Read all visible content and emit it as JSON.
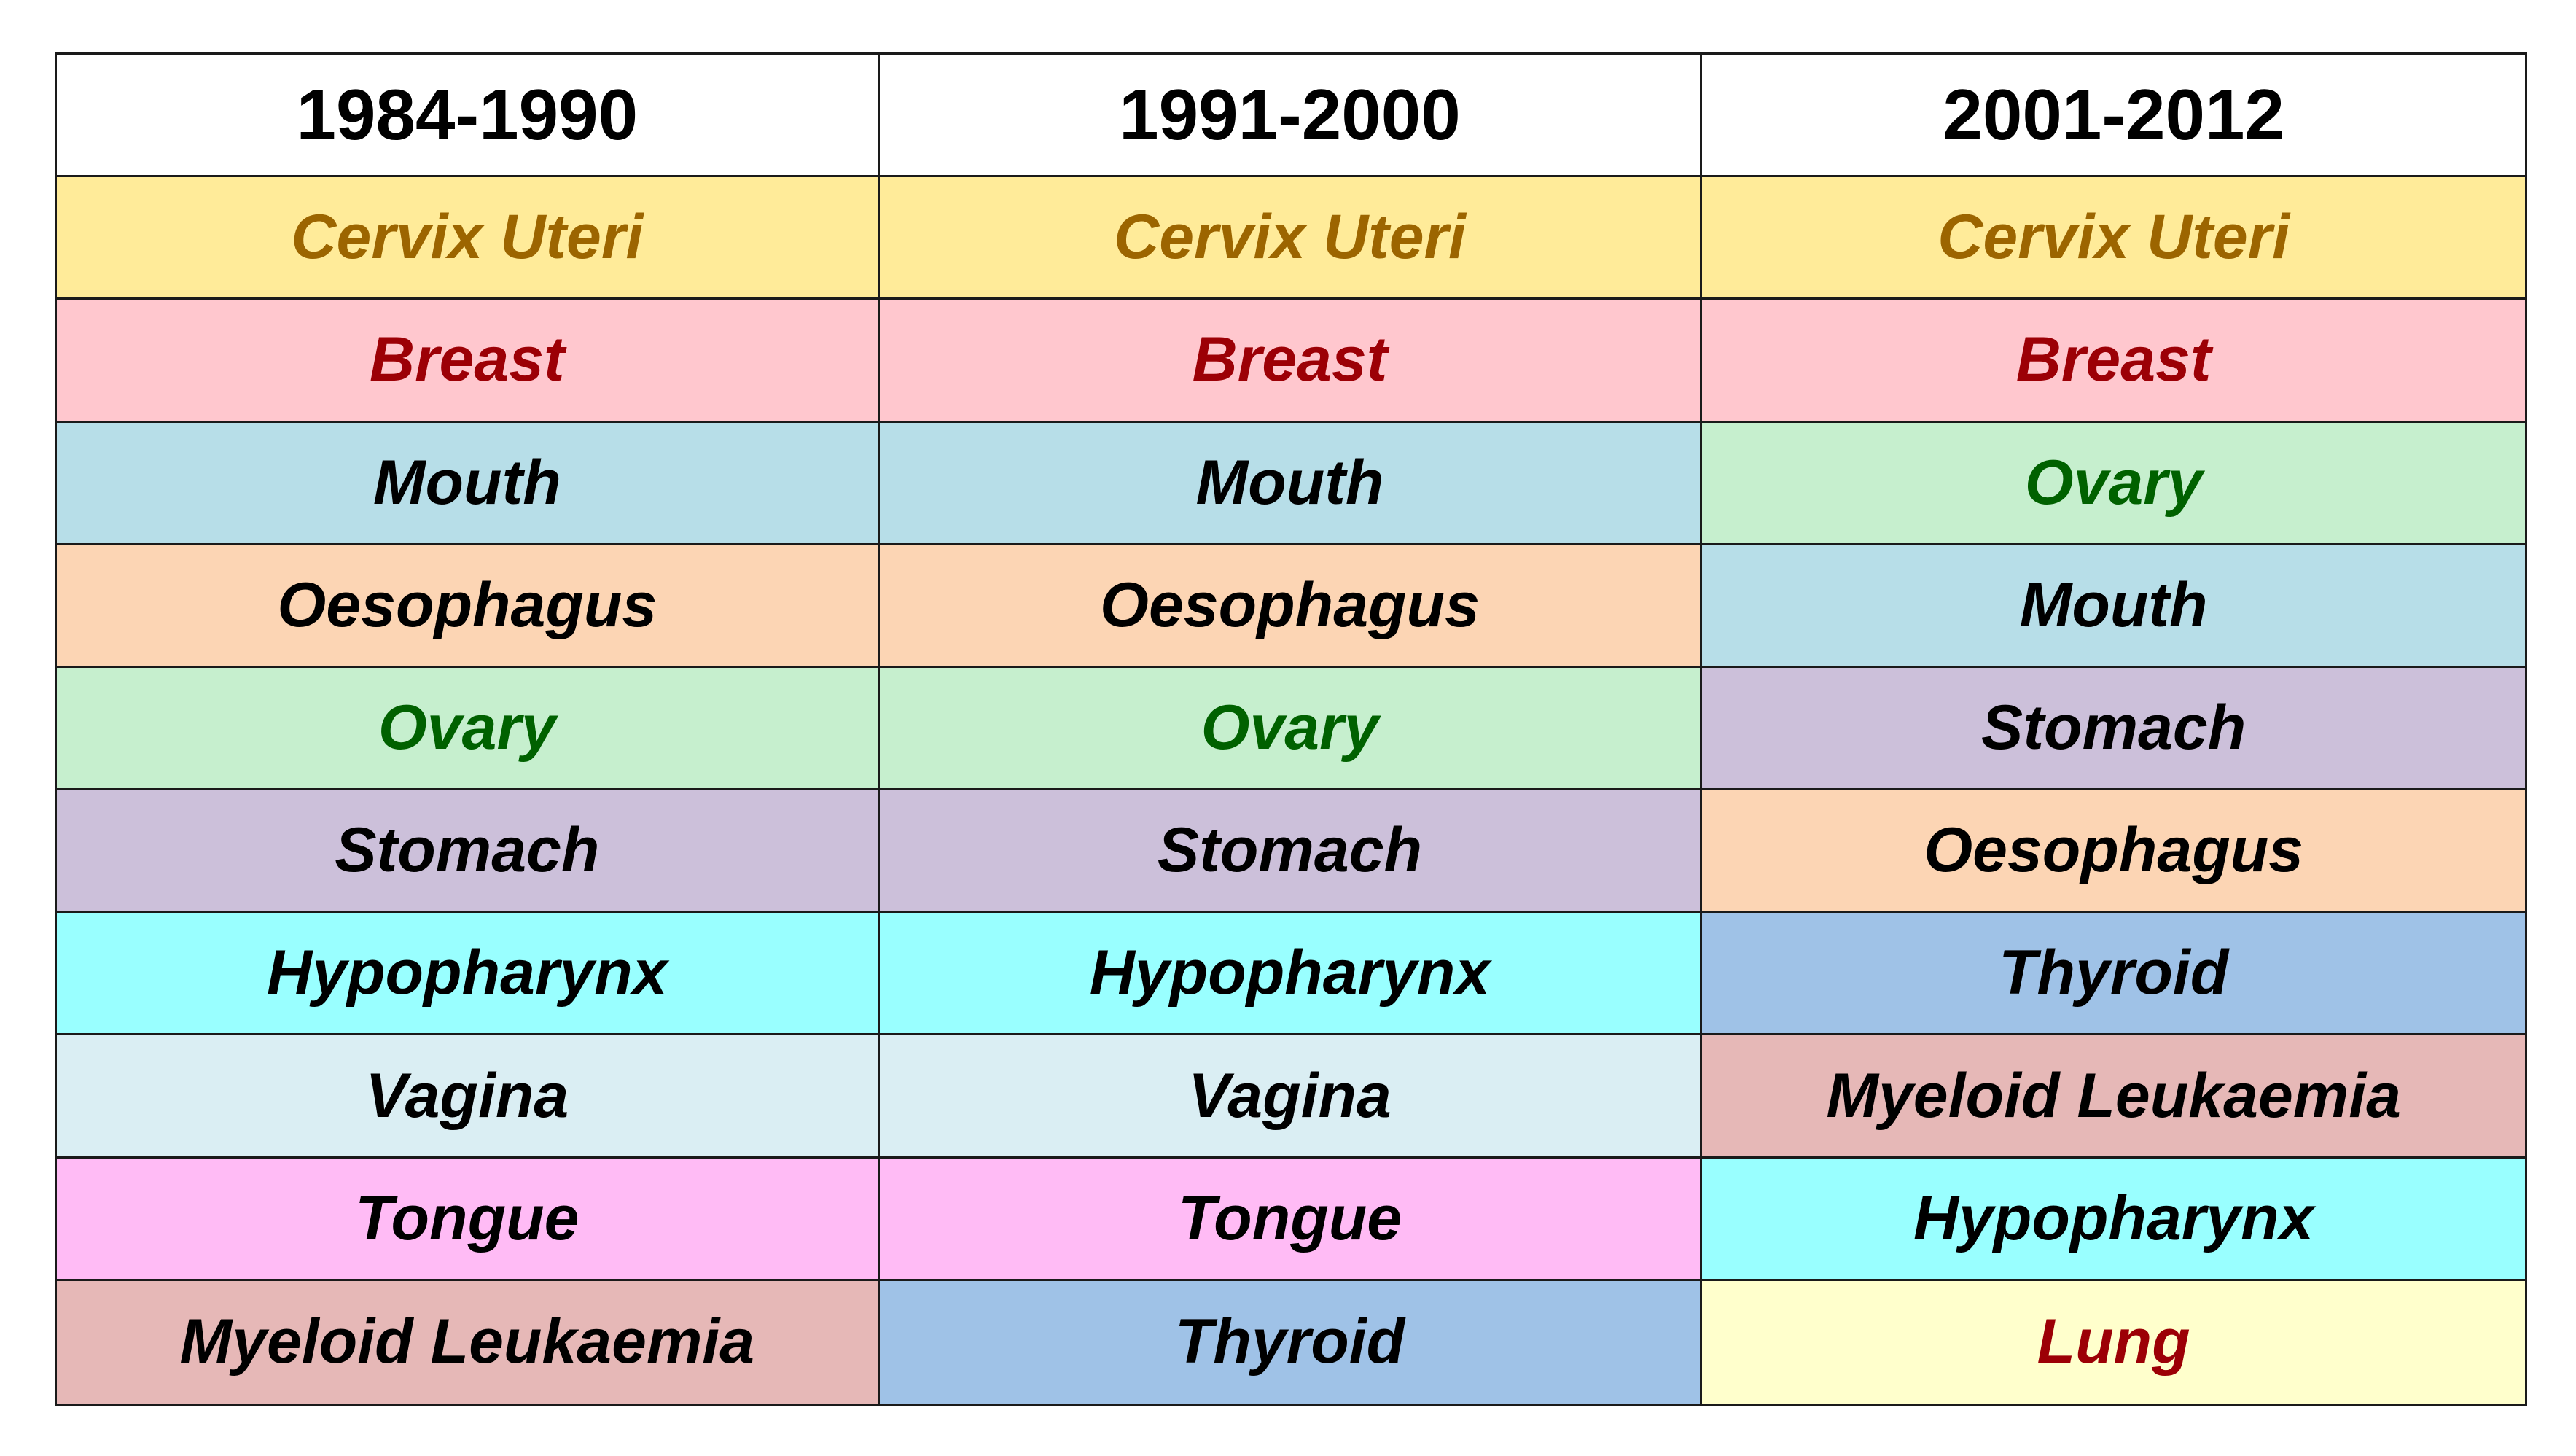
{
  "palette": {
    "cervix-uteri": {
      "bg": "#FFEB99",
      "fg": "#9C6500"
    },
    "breast": {
      "bg": "#FFC7CE",
      "fg": "#9C0006"
    },
    "mouth": {
      "bg": "#B7DEE8",
      "fg": "#000000"
    },
    "oesophagus": {
      "bg": "#FCD5B4",
      "fg": "#000000"
    },
    "ovary": {
      "bg": "#C6EFCE",
      "fg": "#006100"
    },
    "stomach": {
      "bg": "#CCC0DA",
      "fg": "#000000"
    },
    "hypopharynx": {
      "bg": "#99FFFF",
      "fg": "#000000"
    },
    "vagina": {
      "bg": "#DAEEF3",
      "fg": "#000000"
    },
    "tongue": {
      "bg": "#FFBBF5",
      "fg": "#000000"
    },
    "myeloid-leukaemia": {
      "bg": "#E6B8B7",
      "fg": "#000000"
    },
    "thyroid": {
      "bg": "#9FC2E7",
      "fg": "#000000"
    },
    "lung": {
      "bg": "#FFFFCC",
      "fg": "#9C0006"
    }
  },
  "table": {
    "columns": [
      {
        "header": "1984-1990",
        "rows": [
          {
            "label": "Cervix Uteri",
            "key": "cervix-uteri"
          },
          {
            "label": "Breast",
            "key": "breast"
          },
          {
            "label": "Mouth",
            "key": "mouth"
          },
          {
            "label": "Oesophagus",
            "key": "oesophagus"
          },
          {
            "label": "Ovary",
            "key": "ovary"
          },
          {
            "label": "Stomach",
            "key": "stomach"
          },
          {
            "label": "Hypopharynx",
            "key": "hypopharynx"
          },
          {
            "label": "Vagina",
            "key": "vagina"
          },
          {
            "label": "Tongue",
            "key": "tongue"
          },
          {
            "label": "Myeloid Leukaemia",
            "key": "myeloid-leukaemia"
          }
        ]
      },
      {
        "header": "1991-2000",
        "rows": [
          {
            "label": "Cervix Uteri",
            "key": "cervix-uteri"
          },
          {
            "label": "Breast",
            "key": "breast"
          },
          {
            "label": "Mouth",
            "key": "mouth"
          },
          {
            "label": "Oesophagus",
            "key": "oesophagus"
          },
          {
            "label": "Ovary",
            "key": "ovary"
          },
          {
            "label": "Stomach",
            "key": "stomach"
          },
          {
            "label": "Hypopharynx",
            "key": "hypopharynx"
          },
          {
            "label": "Vagina",
            "key": "vagina"
          },
          {
            "label": "Tongue",
            "key": "tongue"
          },
          {
            "label": "Thyroid",
            "key": "thyroid"
          }
        ]
      },
      {
        "header": "2001-2012",
        "rows": [
          {
            "label": "Cervix Uteri",
            "key": "cervix-uteri"
          },
          {
            "label": "Breast",
            "key": "breast"
          },
          {
            "label": "Ovary",
            "key": "ovary"
          },
          {
            "label": "Mouth",
            "key": "mouth"
          },
          {
            "label": "Stomach",
            "key": "stomach"
          },
          {
            "label": "Oesophagus",
            "key": "oesophagus"
          },
          {
            "label": "Thyroid",
            "key": "thyroid"
          },
          {
            "label": "Myeloid Leukaemia",
            "key": "myeloid-leukaemia"
          },
          {
            "label": "Hypopharynx",
            "key": "hypopharynx"
          },
          {
            "label": "Lung",
            "key": "lung"
          }
        ]
      }
    ]
  }
}
